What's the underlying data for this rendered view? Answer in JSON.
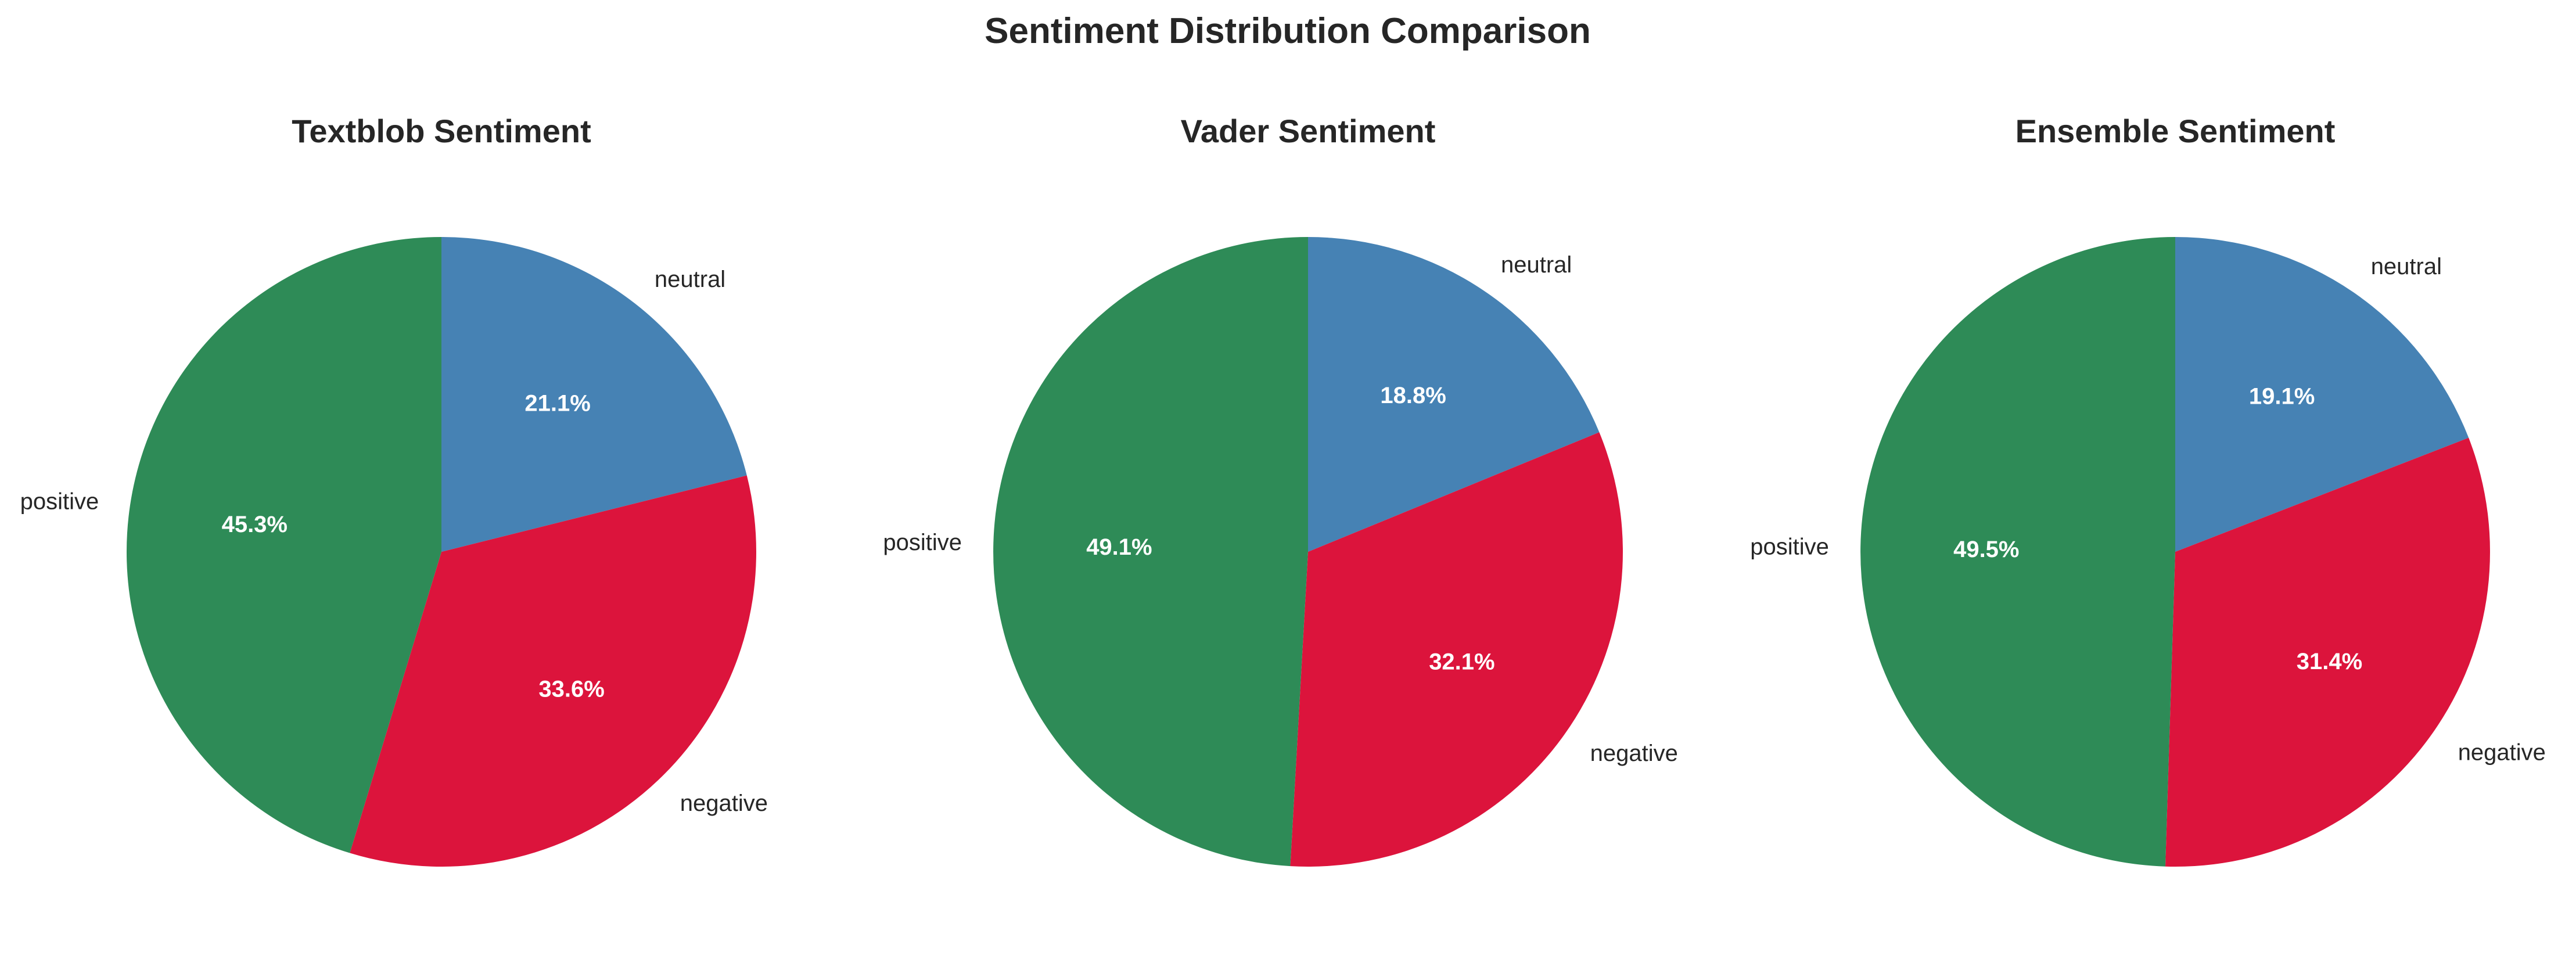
{
  "page": {
    "title": "Sentiment Distribution Comparison"
  },
  "chart_data": [
    {
      "type": "pie",
      "title": "Textblob Sentiment",
      "start_angle_deg": 90,
      "direction": "clockwise",
      "categories": [
        "neutral",
        "negative",
        "positive"
      ],
      "values": [
        21.1,
        33.6,
        45.3
      ],
      "value_labels": [
        "21.1%",
        "33.6%",
        "45.3%"
      ],
      "colors": [
        "#4682B4",
        "#DC143C",
        "#2E8B57"
      ]
    },
    {
      "type": "pie",
      "title": "Vader Sentiment",
      "start_angle_deg": 90,
      "direction": "clockwise",
      "categories": [
        "neutral",
        "negative",
        "positive"
      ],
      "values": [
        18.8,
        32.1,
        49.1
      ],
      "value_labels": [
        "18.8%",
        "32.1%",
        "49.1%"
      ],
      "colors": [
        "#4682B4",
        "#DC143C",
        "#2E8B57"
      ]
    },
    {
      "type": "pie",
      "title": "Ensemble Sentiment",
      "start_angle_deg": 90,
      "direction": "clockwise",
      "categories": [
        "neutral",
        "negative",
        "positive"
      ],
      "values": [
        19.1,
        31.4,
        49.5
      ],
      "value_labels": [
        "19.1%",
        "31.4%",
        "49.5%"
      ],
      "colors": [
        "#4682B4",
        "#DC143C",
        "#2E8B57"
      ]
    }
  ]
}
